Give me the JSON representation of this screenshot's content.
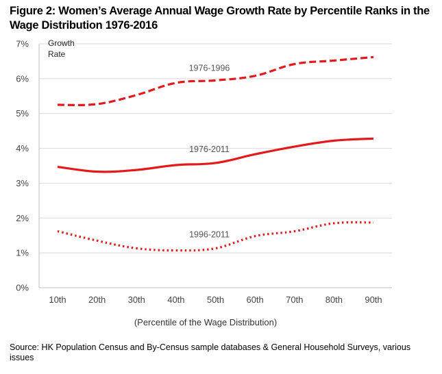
{
  "title": "Figure 2: Women’s Average Annual Wage Growth Rate by Percentile Ranks in the Wage Distribution 1976-2016",
  "source": "Source: HK Population Census and By-Census sample databases & General Household Surveys, various issues",
  "chart_data": {
    "type": "line",
    "categories": [
      "10th",
      "20th",
      "30th",
      "40th",
      "50th",
      "60th",
      "70th",
      "80th",
      "90th"
    ],
    "ylabel_lines": [
      "Growth",
      "Rate"
    ],
    "xlabel": "(Percentile of the Wage Distribution)",
    "ylim": [
      0,
      7
    ],
    "yticks": [
      "0%",
      "1%",
      "2%",
      "3%",
      "4%",
      "5%",
      "6%",
      "7%"
    ],
    "grid": true,
    "line_color": "#e31a1c",
    "series": [
      {
        "name": "1976-1996",
        "style": "dashed",
        "values": [
          5.25,
          5.27,
          5.53,
          5.88,
          5.95,
          6.08,
          6.42,
          6.52,
          6.62
        ]
      },
      {
        "name": "1976-2011",
        "style": "solid",
        "values": [
          3.47,
          3.33,
          3.38,
          3.52,
          3.58,
          3.83,
          4.05,
          4.22,
          4.28
        ]
      },
      {
        "name": "1996-2011",
        "style": "dotted",
        "values": [
          1.62,
          1.35,
          1.13,
          1.07,
          1.13,
          1.48,
          1.62,
          1.85,
          1.87
        ]
      }
    ]
  }
}
